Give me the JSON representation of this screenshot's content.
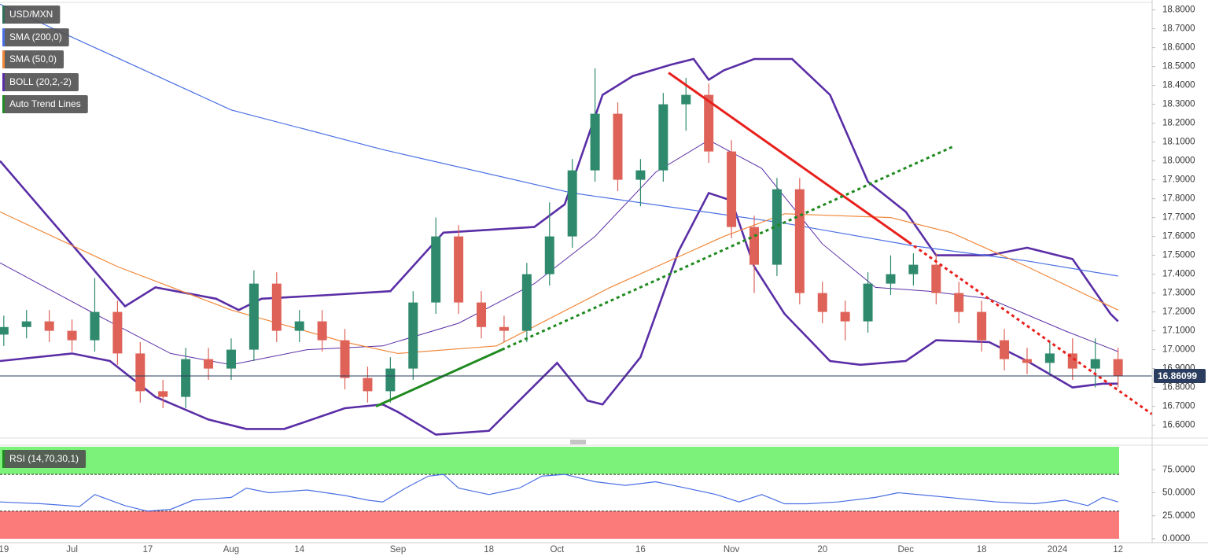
{
  "chart_data": [
    {
      "type": "candlestick",
      "xlim": [
        -0.5,
        151.5
      ],
      "ylim": [
        16.54,
        18.84
      ],
      "yticks": [
        {
          "value": 18.8,
          "label": "18.8000"
        },
        {
          "value": 18.7,
          "label": "18.7000"
        },
        {
          "value": 18.6,
          "label": "18.6000"
        },
        {
          "value": 18.5,
          "label": "18.5000"
        },
        {
          "value": 18.4,
          "label": "18.4000"
        },
        {
          "value": 18.3,
          "label": "18.3000"
        },
        {
          "value": 18.2,
          "label": "18.2000"
        },
        {
          "value": 18.1,
          "label": "18.1000"
        },
        {
          "value": 18.0,
          "label": "18.0000"
        },
        {
          "value": 17.9,
          "label": "17.9000"
        },
        {
          "value": 17.8,
          "label": "17.8000"
        },
        {
          "value": 17.7,
          "label": "17.7000"
        },
        {
          "value": 17.6,
          "label": "17.6000"
        },
        {
          "value": 17.5,
          "label": "17.5000"
        },
        {
          "value": 17.4,
          "label": "17.4000"
        },
        {
          "value": 17.3,
          "label": "17.3000"
        },
        {
          "value": 17.2,
          "label": "17.2000"
        },
        {
          "value": 17.1,
          "label": "17.1000"
        },
        {
          "value": 17.0,
          "label": "17.0000"
        },
        {
          "value": 16.9,
          "label": "16.9000"
        },
        {
          "value": 16.8,
          "label": "16.8000"
        },
        {
          "value": 16.7,
          "label": "16.7000"
        },
        {
          "value": 16.6,
          "label": "16.6000"
        }
      ],
      "grid": true,
      "last_price": 16.86099,
      "candles": {
        "name": "USD/MXN",
        "up_color": "#2f8a6d",
        "down_color": "#de6258",
        "x": [
          0,
          3,
          6,
          9,
          12,
          15,
          18,
          21,
          24,
          27,
          30,
          33,
          36,
          39,
          42,
          45,
          48,
          51,
          54,
          57,
          60,
          63,
          66,
          69,
          72,
          75,
          78,
          81,
          84,
          87,
          90,
          93,
          96,
          99,
          102,
          105,
          108,
          111,
          114,
          117,
          120,
          123,
          126,
          129,
          132,
          135,
          138,
          141,
          144,
          147
        ],
        "open": [
          17.08,
          17.12,
          17.15,
          17.1,
          17.05,
          17.2,
          16.98,
          16.78,
          16.75,
          16.95,
          16.9,
          17.0,
          17.35,
          17.1,
          17.15,
          17.05,
          16.85,
          16.78,
          16.9,
          17.25,
          17.6,
          17.25,
          17.12,
          17.1,
          17.4,
          17.6,
          17.95,
          18.25,
          17.9,
          17.95,
          18.3,
          18.35,
          18.05,
          17.65,
          17.45,
          17.85,
          17.3,
          17.2,
          17.15,
          17.35,
          17.4,
          17.45,
          17.3,
          17.2,
          17.05,
          16.95,
          16.93,
          16.98,
          16.9,
          16.95
        ],
        "high": [
          17.18,
          17.21,
          17.21,
          17.16,
          17.38,
          17.26,
          17.04,
          16.84,
          17.01,
          17.01,
          17.06,
          17.42,
          17.41,
          17.21,
          17.21,
          17.11,
          16.91,
          16.96,
          17.31,
          17.7,
          17.66,
          17.31,
          17.18,
          17.46,
          17.78,
          18.01,
          18.49,
          18.31,
          18.01,
          18.36,
          18.44,
          18.41,
          18.11,
          17.71,
          17.91,
          17.91,
          17.36,
          17.26,
          17.41,
          17.5,
          17.51,
          17.51,
          17.36,
          17.26,
          17.11,
          17.01,
          17.04,
          17.06,
          17.06,
          17.01
        ],
        "low": [
          17.02,
          17.06,
          17.04,
          16.99,
          16.99,
          16.92,
          16.72,
          16.69,
          16.69,
          16.84,
          16.84,
          16.94,
          17.04,
          17.04,
          16.99,
          16.79,
          16.72,
          16.72,
          16.84,
          17.19,
          17.19,
          17.06,
          17.04,
          17.04,
          17.34,
          17.54,
          17.89,
          17.84,
          17.76,
          17.89,
          18.16,
          17.99,
          17.59,
          17.3,
          17.39,
          17.24,
          17.14,
          17.05,
          17.09,
          17.29,
          17.34,
          17.24,
          17.14,
          16.99,
          16.89,
          16.87,
          16.87,
          16.84,
          16.8,
          16.8
        ],
        "close": [
          17.12,
          17.15,
          17.1,
          17.05,
          17.2,
          16.98,
          16.78,
          16.75,
          16.95,
          16.9,
          17.0,
          17.35,
          17.1,
          17.15,
          17.05,
          16.85,
          16.78,
          16.9,
          17.25,
          17.6,
          17.25,
          17.12,
          17.1,
          17.4,
          17.6,
          17.95,
          18.25,
          17.9,
          17.95,
          18.3,
          18.35,
          18.05,
          17.65,
          17.45,
          17.85,
          17.3,
          17.2,
          17.15,
          17.35,
          17.4,
          17.45,
          17.3,
          17.2,
          17.05,
          16.95,
          16.93,
          16.98,
          16.9,
          16.95,
          16.86
        ]
      },
      "series": [
        {
          "name": "SMA (200,0)",
          "color": "#4a6fe3",
          "width": 1.2,
          "x": [
            -0.5,
            30,
            50,
            75,
            103,
            120,
            135,
            147
          ],
          "values": [
            18.83,
            18.27,
            18.06,
            17.83,
            17.67,
            17.55,
            17.47,
            17.39
          ]
        },
        {
          "name": "SMA (50,0)",
          "color": "#f0883a",
          "width": 1.2,
          "x": [
            -0.5,
            15,
            30,
            45,
            52,
            65,
            80,
            95,
            103,
            117,
            125,
            135,
            147
          ],
          "values": [
            17.73,
            17.44,
            17.21,
            17.04,
            16.98,
            17.02,
            17.33,
            17.6,
            17.72,
            17.7,
            17.62,
            17.44,
            17.21
          ]
        }
      ],
      "bollinger": {
        "name": "BOLL (20,2,-2)",
        "color": "#5a2ea6",
        "upper": {
          "x": [
            -0.5,
            16,
            20,
            28,
            31,
            34,
            43,
            51,
            58,
            70,
            74,
            79,
            83,
            88,
            91,
            93,
            95,
            99,
            104,
            109,
            114,
            119,
            123,
            130,
            135,
            141,
            146,
            147
          ],
          "values": [
            18.0,
            17.23,
            17.33,
            17.27,
            17.21,
            17.27,
            17.29,
            17.31,
            17.62,
            17.65,
            17.77,
            18.35,
            18.45,
            18.51,
            18.54,
            18.43,
            18.48,
            18.54,
            18.54,
            18.35,
            17.89,
            17.73,
            17.5,
            17.5,
            17.54,
            17.48,
            17.19,
            17.15
          ]
        },
        "middle": {
          "x": [
            -0.5,
            12,
            22,
            30,
            40,
            50,
            60,
            70,
            78,
            86,
            93,
            100,
            108,
            115,
            122,
            130,
            140,
            147
          ],
          "values": [
            17.46,
            17.19,
            16.98,
            16.92,
            17.0,
            17.02,
            17.14,
            17.35,
            17.6,
            17.94,
            18.11,
            17.96,
            17.56,
            17.33,
            17.31,
            17.27,
            17.1,
            16.99
          ]
        },
        "lower": {
          "x": [
            -0.5,
            9,
            14,
            20,
            27,
            32,
            37,
            45,
            50,
            52,
            57,
            64,
            70,
            73,
            77,
            79,
            84,
            89,
            93,
            96,
            99,
            103,
            109,
            113,
            119,
            123,
            130,
            135,
            141,
            145,
            147
          ],
          "values": [
            16.94,
            16.98,
            16.94,
            16.75,
            16.63,
            16.58,
            16.58,
            16.69,
            16.71,
            16.67,
            16.55,
            16.57,
            16.81,
            16.93,
            16.73,
            16.71,
            16.96,
            17.52,
            17.83,
            17.79,
            17.44,
            17.19,
            16.94,
            16.92,
            16.94,
            17.05,
            17.04,
            16.94,
            16.8,
            16.82,
            16.82
          ]
        }
      },
      "trend_lines": {
        "name": "Auto Trend Lines",
        "lines": [
          {
            "color": "#e8201c",
            "style": "solid",
            "x": [
              87.7,
              119.4
            ],
            "values": [
              18.467,
              17.569
            ]
          },
          {
            "color": "#e8201c",
            "style": "dotted",
            "x": [
              119.4,
              151.5
            ],
            "values": [
              17.569,
              16.658
            ]
          },
          {
            "color": "#1f8a1f",
            "style": "solid",
            "x": [
              49.1,
              65.7
            ],
            "values": [
              16.7,
              17.0
            ]
          },
          {
            "color": "#1f8a1f",
            "style": "dotted",
            "x": [
              65.7,
              125.3
            ],
            "values": [
              17.0,
              18.077
            ]
          }
        ]
      }
    },
    {
      "type": "line",
      "xlim": [
        -0.5,
        151.5
      ],
      "ylim": [
        0,
        100
      ],
      "yticks": [
        {
          "value": 75,
          "label": "75.0000"
        },
        {
          "value": 50,
          "label": "50.0000"
        },
        {
          "value": 25,
          "label": "25.0000"
        },
        {
          "value": 0,
          "label": "0.0000"
        }
      ],
      "overbought": 70,
      "oversold": 30,
      "xticks": [
        {
          "value": 0,
          "label": "19"
        },
        {
          "value": 9,
          "label": "Jul"
        },
        {
          "value": 19,
          "label": "17"
        },
        {
          "value": 30,
          "label": "Aug"
        },
        {
          "value": 39,
          "label": "14"
        },
        {
          "value": 52,
          "label": "Sep"
        },
        {
          "value": 64,
          "label": "18"
        },
        {
          "value": 73,
          "label": "Oct"
        },
        {
          "value": 84,
          "label": "16"
        },
        {
          "value": 96,
          "label": "Nov"
        },
        {
          "value": 108,
          "label": "20"
        },
        {
          "value": 119,
          "label": "Dec"
        },
        {
          "value": 129,
          "label": "18"
        },
        {
          "value": 139,
          "label": "2024"
        },
        {
          "value": 147,
          "label": "12"
        }
      ],
      "series": [
        {
          "name": "RSI (14,70,30,1)",
          "color": "#4a6fe3",
          "x": [
            -0.5,
            5,
            10,
            12,
            16,
            19,
            22,
            25,
            30,
            32,
            35,
            40,
            45,
            48,
            50,
            53,
            56,
            58,
            60,
            64,
            68,
            71,
            74,
            78,
            82,
            86,
            90,
            94,
            97,
            100,
            103,
            106,
            110,
            115,
            118,
            122,
            127,
            131,
            136,
            140,
            143,
            145,
            147
          ],
          "values": [
            40,
            38,
            35,
            48,
            36,
            30,
            32,
            42,
            45,
            55,
            50,
            53,
            47,
            42,
            40,
            55,
            68,
            70,
            55,
            48,
            55,
            68,
            70,
            62,
            58,
            62,
            55,
            48,
            40,
            48,
            38,
            38,
            40,
            45,
            50,
            47,
            43,
            40,
            38,
            42,
            36,
            45,
            40
          ]
        }
      ]
    }
  ]
}
